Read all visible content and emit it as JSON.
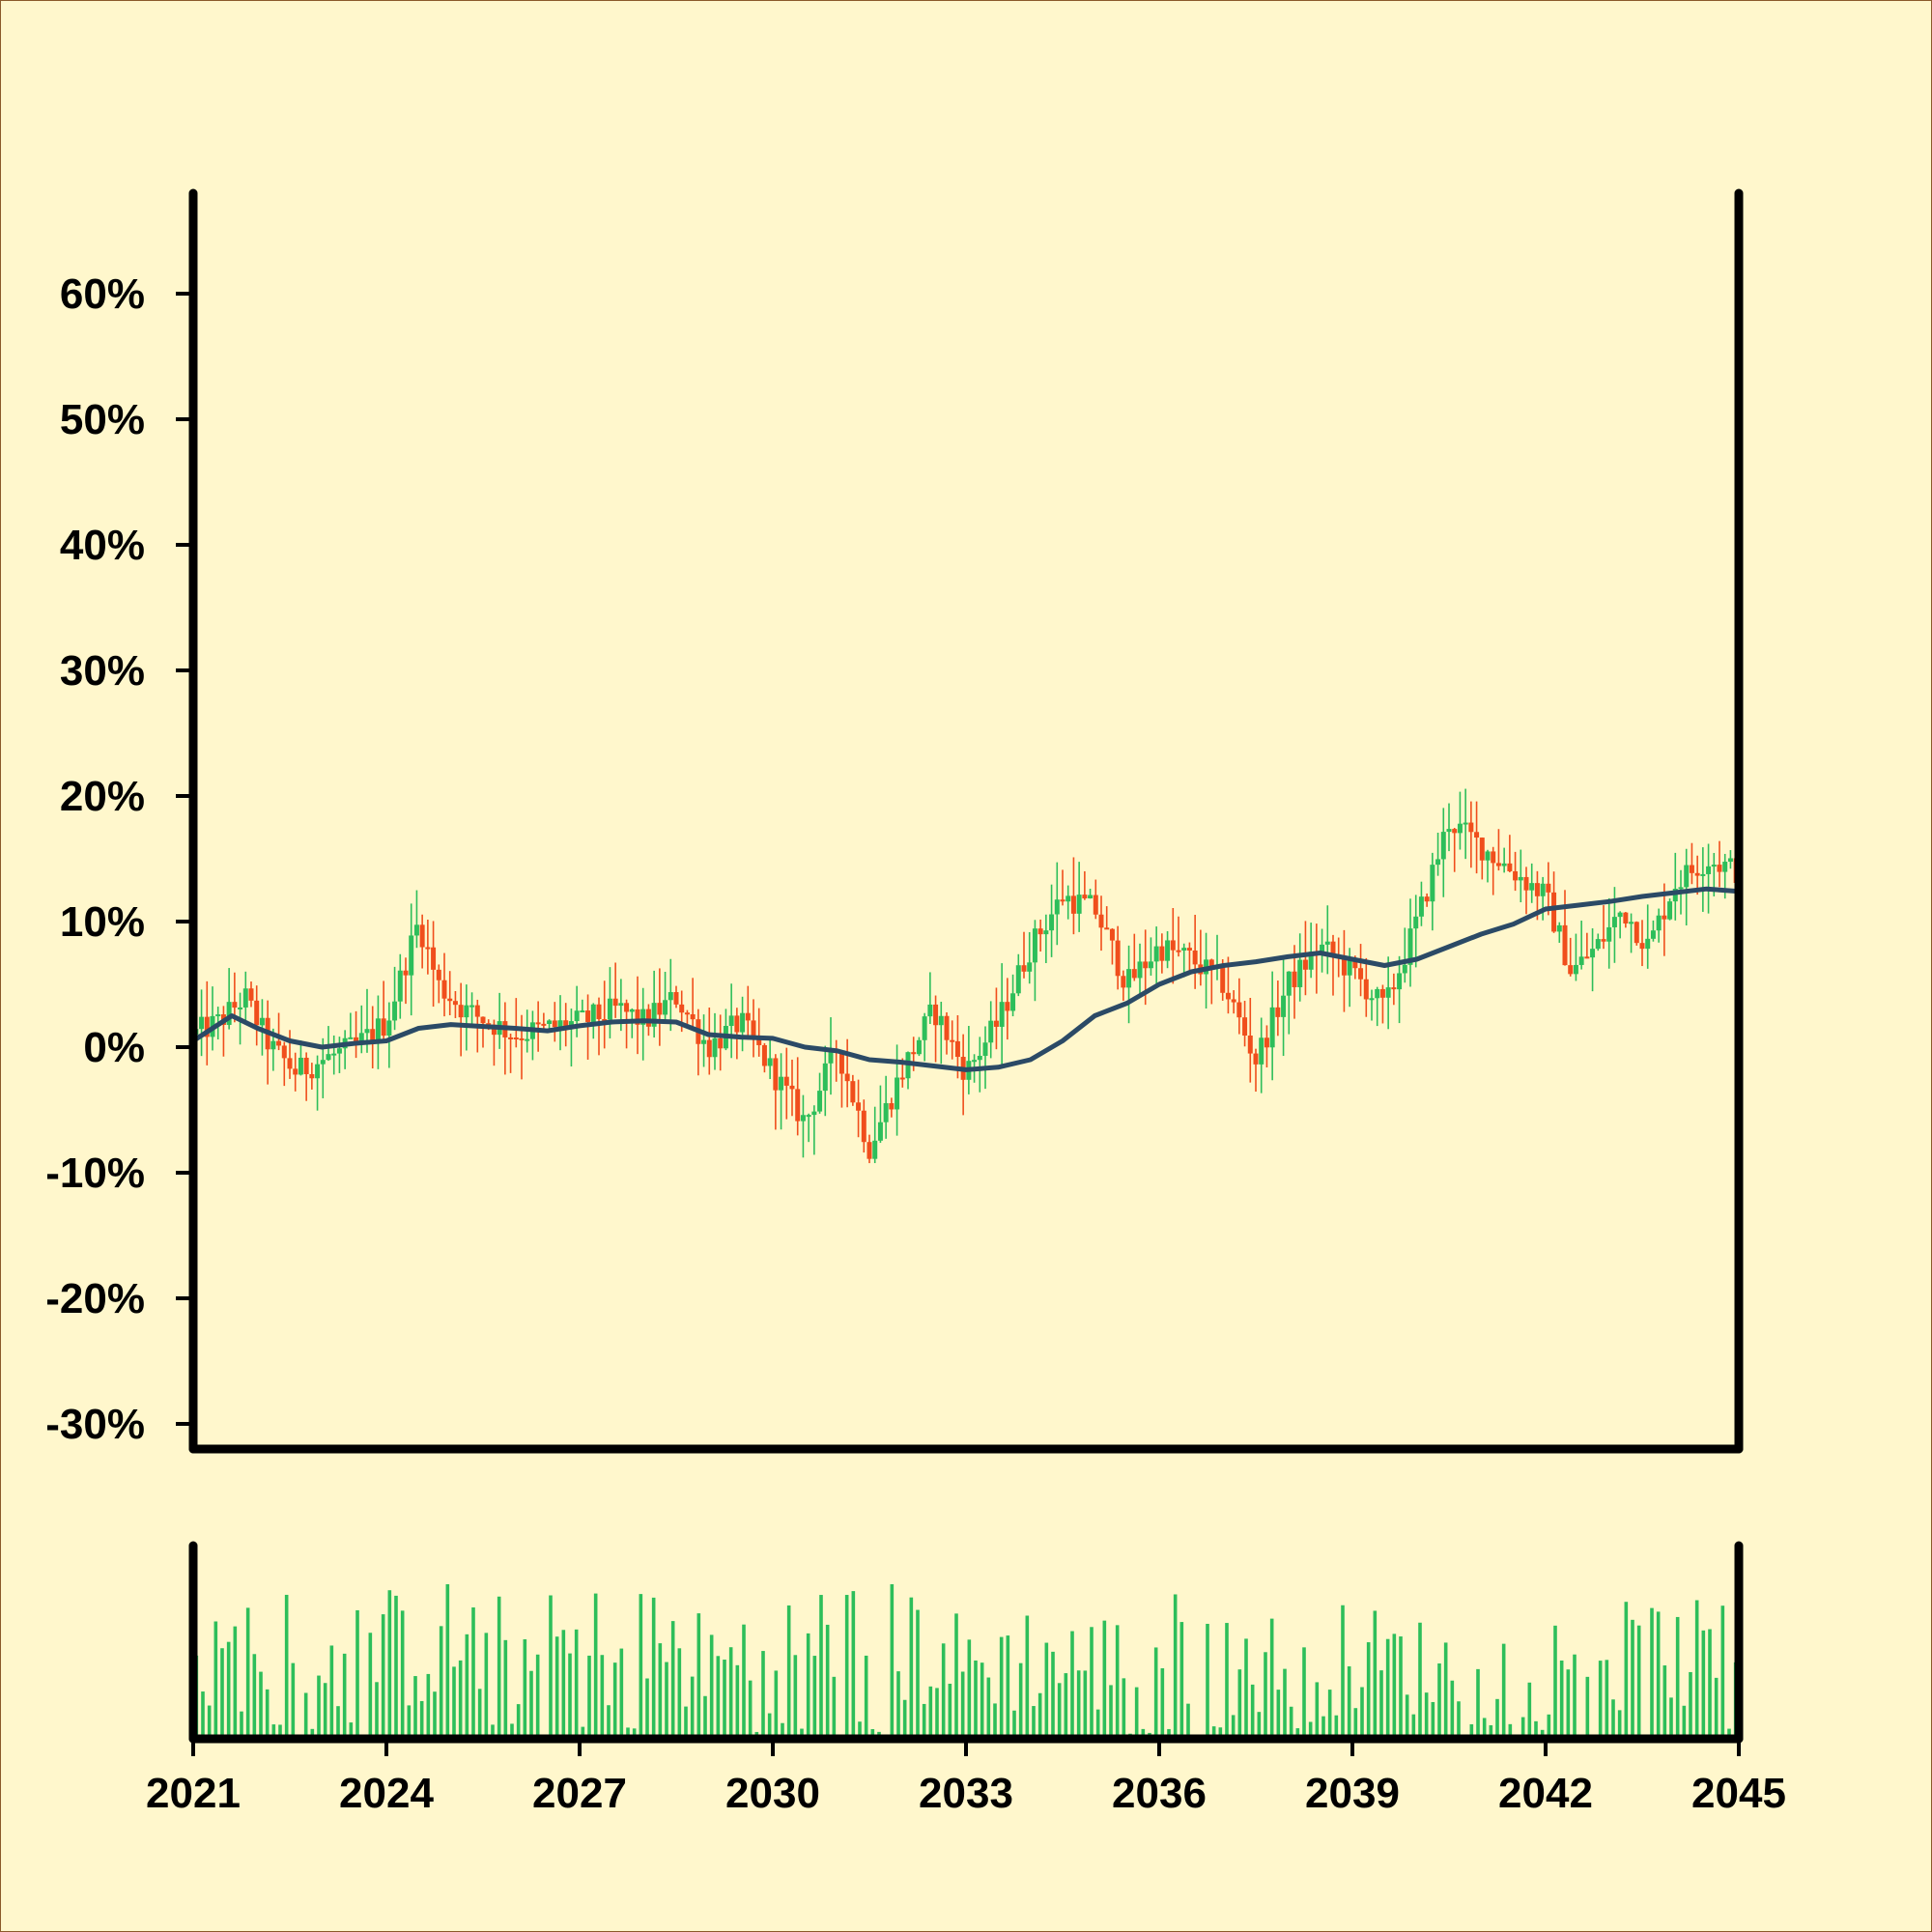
{
  "colors": {
    "background": "#FFF7CC",
    "frame": "#8B5A2B",
    "up": "#2DBE5A",
    "down": "#F04E1C",
    "moving_average": "#2B4A66",
    "volume": "#2DBE5A",
    "axis": "#000000"
  },
  "chart_data": [
    {
      "type": "candlestick",
      "title": "",
      "xlabel": "",
      "ylabel": "",
      "xlim": [
        2021,
        2045
      ],
      "ylim": [
        -32,
        68
      ],
      "y_ticks": [
        {
          "value": 60,
          "label": "60%"
        },
        {
          "value": 50,
          "label": "50%"
        },
        {
          "value": 40,
          "label": "40%"
        },
        {
          "value": 30,
          "label": "30%"
        },
        {
          "value": 20,
          "label": "20%"
        },
        {
          "value": 10,
          "label": "10%"
        },
        {
          "value": 0,
          "label": "0%"
        },
        {
          "value": -10,
          "label": "-10%"
        },
        {
          "value": -20,
          "label": "-20%"
        },
        {
          "value": -30,
          "label": "-30%"
        }
      ],
      "grid": false,
      "legend": "none",
      "close_path": [
        [
          2021.0,
          1
        ],
        [
          2021.4,
          2
        ],
        [
          2021.8,
          4
        ],
        [
          2022.2,
          0
        ],
        [
          2022.6,
          -2
        ],
        [
          2023.0,
          -1
        ],
        [
          2023.5,
          0
        ],
        [
          2024.0,
          2
        ],
        [
          2024.5,
          10
        ],
        [
          2024.8,
          5
        ],
        [
          2025.2,
          3
        ],
        [
          2026.0,
          1
        ],
        [
          2027.0,
          2
        ],
        [
          2027.6,
          3
        ],
        [
          2028.0,
          2
        ],
        [
          2028.5,
          4
        ],
        [
          2029.0,
          0
        ],
        [
          2029.5,
          2
        ],
        [
          2030.0,
          -2
        ],
        [
          2030.5,
          -6
        ],
        [
          2031.0,
          0
        ],
        [
          2031.5,
          -8
        ],
        [
          2032.0,
          -2
        ],
        [
          2032.5,
          3
        ],
        [
          2033.0,
          -2
        ],
        [
          2033.5,
          2
        ],
        [
          2034.0,
          8
        ],
        [
          2034.5,
          12
        ],
        [
          2035.0,
          11
        ],
        [
          2035.5,
          5
        ],
        [
          2036.0,
          8
        ],
        [
          2036.5,
          7
        ],
        [
          2037.0,
          5
        ],
        [
          2037.5,
          -1
        ],
        [
          2038.0,
          5
        ],
        [
          2038.5,
          8
        ],
        [
          2039.0,
          6
        ],
        [
          2039.5,
          3
        ],
        [
          2040.0,
          10
        ],
        [
          2040.5,
          18
        ],
        [
          2041.0,
          16
        ],
        [
          2041.5,
          14
        ],
        [
          2042.0,
          12
        ],
        [
          2042.4,
          6
        ],
        [
          2042.8,
          8
        ],
        [
          2043.2,
          11
        ],
        [
          2043.6,
          8
        ],
        [
          2044.0,
          13
        ],
        [
          2044.5,
          15
        ],
        [
          2045.0,
          14
        ]
      ],
      "moving_average": [
        [
          2021.0,
          0.5
        ],
        [
          2021.3,
          1.5
        ],
        [
          2021.6,
          2.5
        ],
        [
          2022.0,
          1.5
        ],
        [
          2022.5,
          0.5
        ],
        [
          2023.0,
          0
        ],
        [
          2023.5,
          0.3
        ],
        [
          2024.0,
          0.5
        ],
        [
          2024.5,
          1.5
        ],
        [
          2025.0,
          1.8
        ],
        [
          2026.0,
          1.5
        ],
        [
          2026.5,
          1.3
        ],
        [
          2027.0,
          1.7
        ],
        [
          2027.5,
          2.0
        ],
        [
          2028.0,
          2.1
        ],
        [
          2028.5,
          2.0
        ],
        [
          2029.0,
          1.0
        ],
        [
          2029.5,
          0.8
        ],
        [
          2030.0,
          0.7
        ],
        [
          2030.5,
          0.0
        ],
        [
          2031.0,
          -0.3
        ],
        [
          2031.5,
          -1.0
        ],
        [
          2032.0,
          -1.2
        ],
        [
          2032.5,
          -1.5
        ],
        [
          2033.0,
          -1.8
        ],
        [
          2033.5,
          -1.6
        ],
        [
          2034.0,
          -1.0
        ],
        [
          2034.5,
          0.5
        ],
        [
          2035.0,
          2.5
        ],
        [
          2035.5,
          3.5
        ],
        [
          2036.0,
          5.0
        ],
        [
          2036.5,
          6.0
        ],
        [
          2037.0,
          6.5
        ],
        [
          2037.5,
          6.8
        ],
        [
          2038.0,
          7.2
        ],
        [
          2038.5,
          7.5
        ],
        [
          2039.0,
          7.0
        ],
        [
          2039.5,
          6.5
        ],
        [
          2040.0,
          7.0
        ],
        [
          2040.5,
          8.0
        ],
        [
          2041.0,
          9.0
        ],
        [
          2041.5,
          9.8
        ],
        [
          2042.0,
          11.0
        ],
        [
          2042.5,
          11.3
        ],
        [
          2043.0,
          11.6
        ],
        [
          2043.5,
          12.0
        ],
        [
          2044.0,
          12.3
        ],
        [
          2044.5,
          12.6
        ],
        [
          2045.0,
          12.4
        ]
      ]
    },
    {
      "type": "bar",
      "title": "",
      "xlabel": "",
      "ylabel": "",
      "xlim": [
        2021,
        2045
      ],
      "x_ticks": [
        {
          "value": 2021,
          "label": "2021"
        },
        {
          "value": 2024,
          "label": "2024"
        },
        {
          "value": 2027,
          "label": "2027"
        },
        {
          "value": 2030,
          "label": "2030"
        },
        {
          "value": 2033,
          "label": "2033"
        },
        {
          "value": 2036,
          "label": "2036"
        },
        {
          "value": 2039,
          "label": "2039"
        },
        {
          "value": 2042,
          "label": "2042"
        },
        {
          "value": 2045,
          "label": "2045"
        }
      ],
      "y_axis": "unlabeled",
      "grid": false,
      "legend": "none",
      "volume_profile": [
        [
          2021.0,
          0.35
        ],
        [
          2022.0,
          0.6
        ],
        [
          2023.0,
          0.5
        ],
        [
          2024.0,
          0.55
        ],
        [
          2025.0,
          0.6
        ],
        [
          2026.0,
          0.5
        ],
        [
          2027.0,
          0.55
        ],
        [
          2028.0,
          0.6
        ],
        [
          2029.0,
          0.45
        ],
        [
          2030.0,
          0.55
        ],
        [
          2031.0,
          0.6
        ],
        [
          2032.0,
          0.6
        ],
        [
          2033.0,
          0.45
        ],
        [
          2034.0,
          0.5
        ],
        [
          2035.0,
          0.45
        ],
        [
          2036.0,
          0.55
        ],
        [
          2037.0,
          0.5
        ],
        [
          2038.0,
          0.45
        ],
        [
          2039.0,
          0.5
        ],
        [
          2040.0,
          0.45
        ],
        [
          2041.0,
          0.4
        ],
        [
          2042.0,
          0.45
        ],
        [
          2043.0,
          0.5
        ],
        [
          2044.0,
          0.5
        ],
        [
          2045.0,
          0.5
        ]
      ]
    }
  ]
}
